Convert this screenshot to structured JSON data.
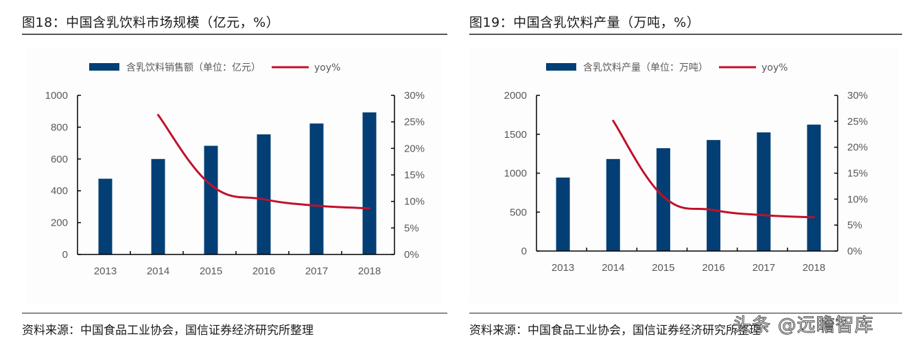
{
  "colors": {
    "bar": "#033F75",
    "line": "#C0102A",
    "axis": "#000000",
    "tick_text": "#595959"
  },
  "watermark": "头条 @远瞻智库",
  "chart_data": [
    {
      "id": "fig18",
      "type": "bar",
      "title": "图18：中国含乳饮料市场规模（亿元，%）",
      "source": "资料来源：中国食品工业协会，国信证券经济研究所整理",
      "categories": [
        "2013",
        "2014",
        "2015",
        "2016",
        "2017",
        "2018"
      ],
      "series": [
        {
          "name": "含乳饮料销售额（单位：亿元）",
          "type": "bar",
          "axis": "left",
          "values": [
            476,
            600,
            683,
            755,
            823,
            893
          ]
        },
        {
          "name": "yoy%",
          "type": "line",
          "axis": "right",
          "values": [
            null,
            26.3,
            13.1,
            10.4,
            9.2,
            8.7
          ]
        }
      ],
      "y_left": {
        "min": 0,
        "max": 1000,
        "ticks": [
          0,
          200,
          400,
          600,
          800,
          1000
        ],
        "tick_labels": [
          "0",
          "200",
          "400",
          "600",
          "800",
          "1000"
        ]
      },
      "y_right": {
        "min": 0,
        "max": 30,
        "ticks": [
          0,
          5,
          10,
          15,
          20,
          25,
          30
        ],
        "tick_labels": [
          "0%",
          "5%",
          "10%",
          "15%",
          "20%",
          "25%",
          "30%"
        ]
      },
      "xlabel": "",
      "ylabel": "",
      "grid": false,
      "legend_position": "top-center"
    },
    {
      "id": "fig19",
      "type": "bar",
      "title": "图19：中国含乳饮料产量（万吨，%）",
      "source": "资料来源：中国食品工业协会，国信证券经济研究所整理",
      "categories": [
        "2013",
        "2014",
        "2015",
        "2016",
        "2017",
        "2018"
      ],
      "series": [
        {
          "name": "含乳饮料产量（单位：万吨）",
          "type": "bar",
          "axis": "left",
          "values": [
            944,
            1182,
            1321,
            1426,
            1524,
            1624
          ]
        },
        {
          "name": "yoy%",
          "type": "line",
          "axis": "right",
          "values": [
            null,
            25.1,
            10.5,
            7.9,
            6.9,
            6.5
          ]
        }
      ],
      "y_left": {
        "min": 0,
        "max": 2000,
        "ticks": [
          0,
          500,
          1000,
          1500,
          2000
        ],
        "tick_labels": [
          "0",
          "500",
          "1000",
          "1500",
          "2000"
        ]
      },
      "y_right": {
        "min": 0,
        "max": 30,
        "ticks": [
          0,
          5,
          10,
          15,
          20,
          25,
          30
        ],
        "tick_labels": [
          "0%",
          "5%",
          "10%",
          "15%",
          "20%",
          "25%",
          "30%"
        ]
      },
      "xlabel": "",
      "ylabel": "",
      "grid": false,
      "legend_position": "top-center"
    }
  ]
}
